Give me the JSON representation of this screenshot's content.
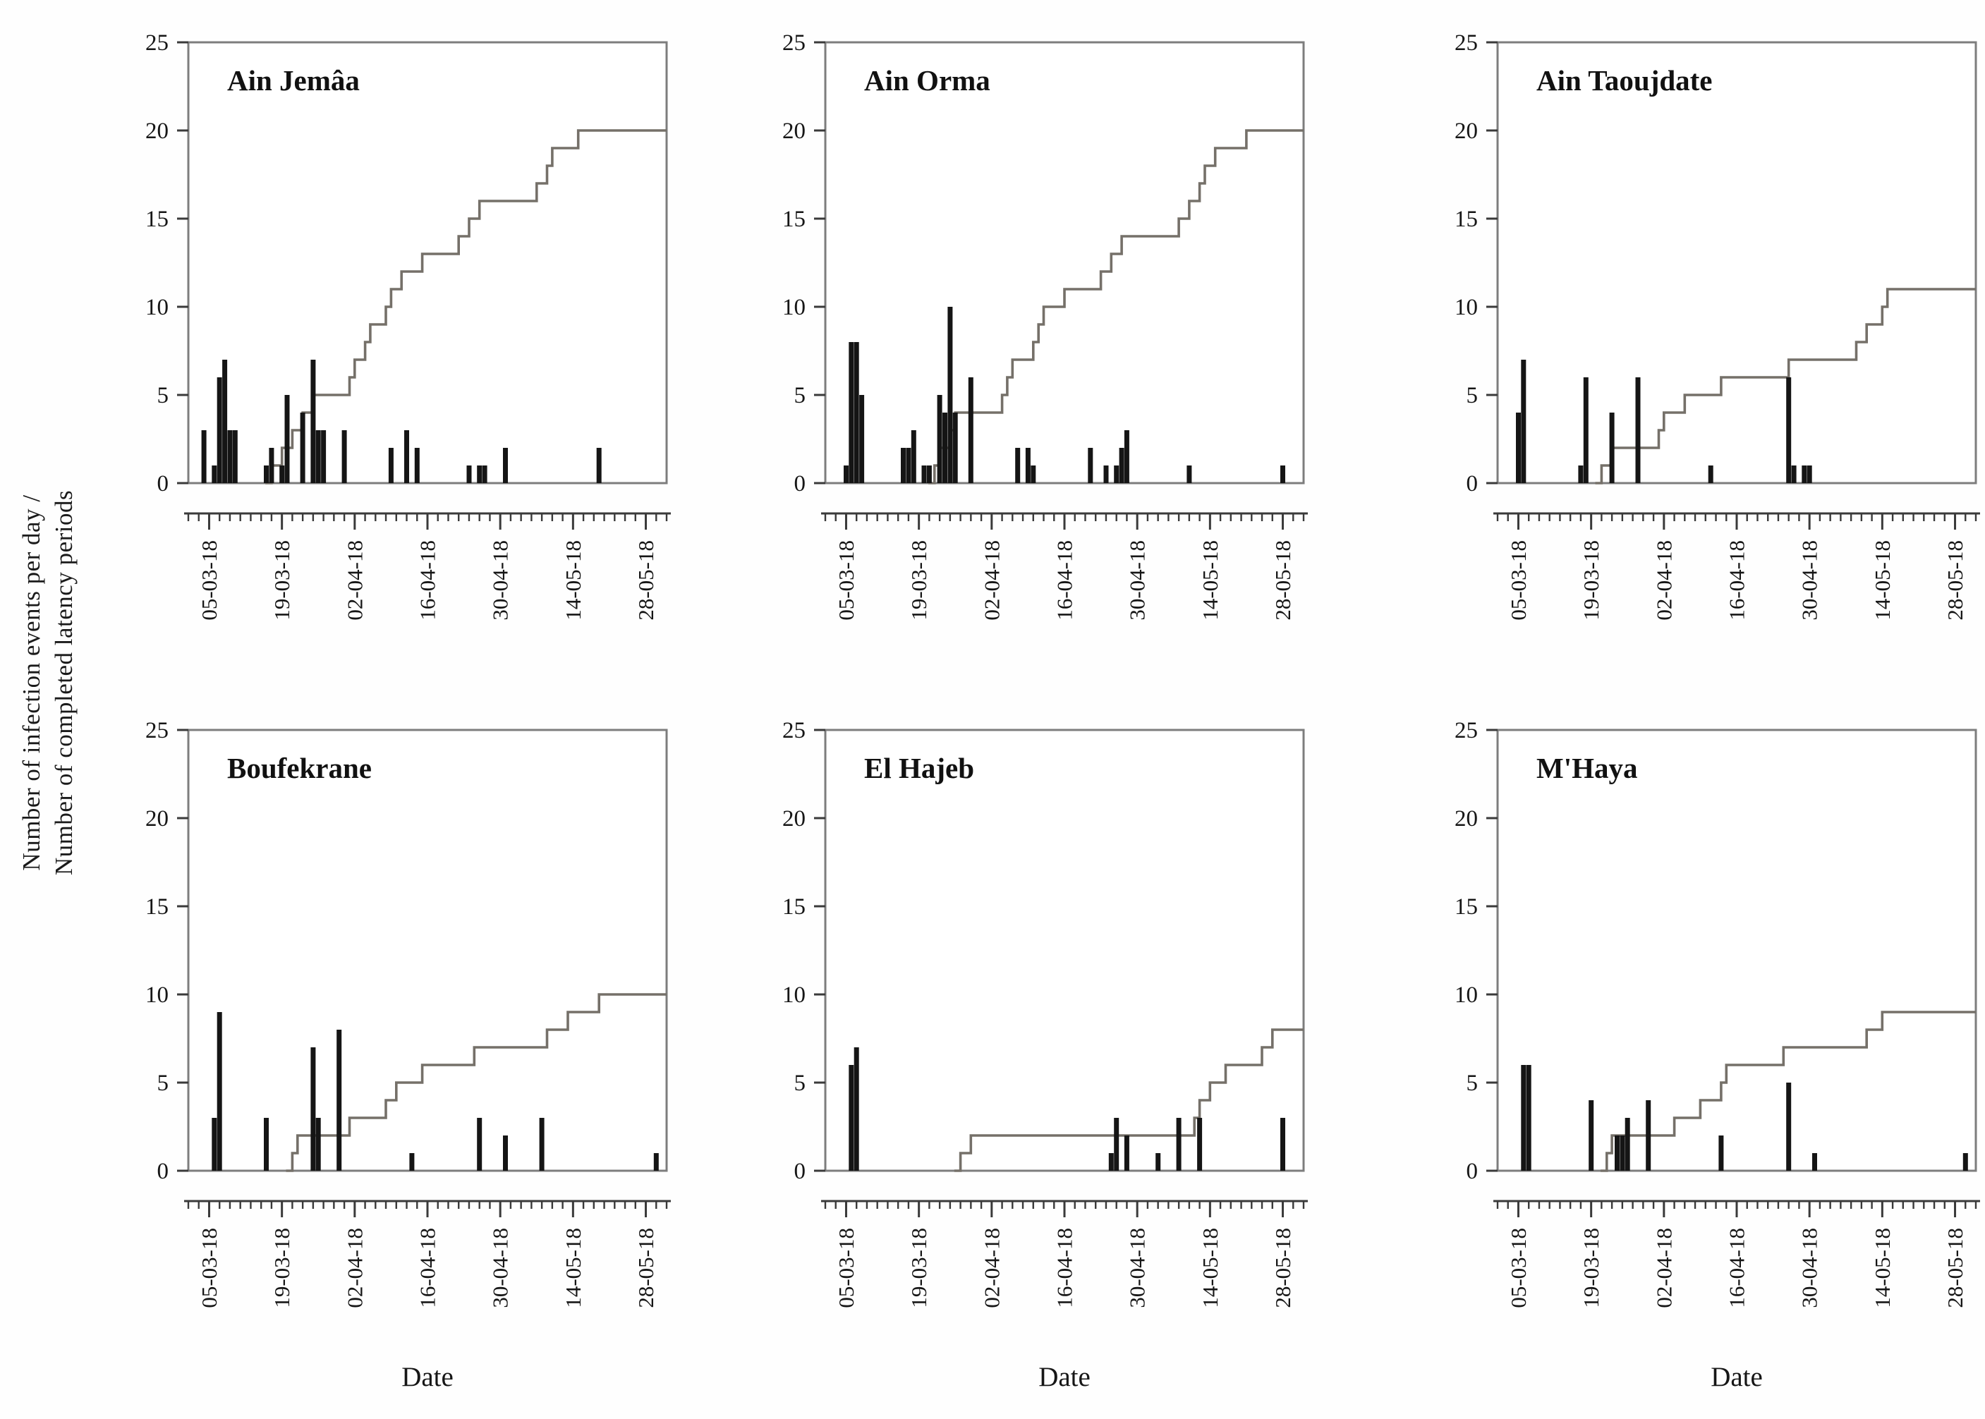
{
  "figure": {
    "y_axis_label_line1": "Number of infection events per day /",
    "y_axis_label_line2": "Number of completed latency periods",
    "x_axis_title": "Date",
    "y_tick_values": [
      0,
      5,
      10,
      15,
      20,
      25
    ],
    "x_tick_labels": [
      "05-03-18",
      "19-03-18",
      "02-04-18",
      "16-04-18",
      "30-04-18",
      "14-05-18",
      "28-05-18"
    ],
    "colors": {
      "bar": "#151515",
      "step_line": "#757069",
      "plot_border": "#7d7d7d",
      "axis_line": "#3a3a3a",
      "tick_mark": "#3a3a3a",
      "label_text": "#161616"
    }
  },
  "chart_data": {
    "type": "bar",
    "note": "Six panels: daily infection events (black bars) and cumulative completed latency periods (grey step line). X axis in days since 01-03-18; labelled major ticks every 14 days.",
    "x_domain_days": [
      0,
      92
    ],
    "y_domain": [
      0,
      25
    ],
    "x_major_tick_days": [
      4,
      18,
      32,
      46,
      60,
      74,
      88
    ],
    "legend_position": "none",
    "grid": "off",
    "panels": [
      {
        "title": "Ain Jemâa",
        "row": 0,
        "col": 0,
        "bars": [
          [
            3,
            3
          ],
          [
            5,
            1
          ],
          [
            6,
            6
          ],
          [
            7,
            7
          ],
          [
            8,
            3
          ],
          [
            9,
            3
          ],
          [
            15,
            1
          ],
          [
            16,
            2
          ],
          [
            18,
            1
          ],
          [
            19,
            5
          ],
          [
            22,
            4
          ],
          [
            24,
            7
          ],
          [
            25,
            3
          ],
          [
            26,
            3
          ],
          [
            30,
            3
          ],
          [
            39,
            2
          ],
          [
            42,
            3
          ],
          [
            44,
            2
          ],
          [
            54,
            1
          ],
          [
            56,
            1
          ],
          [
            57,
            1
          ],
          [
            61,
            2
          ],
          [
            79,
            2
          ]
        ],
        "latency_steps": [
          [
            16,
            1
          ],
          [
            18,
            2
          ],
          [
            20,
            3
          ],
          [
            22,
            4
          ],
          [
            24,
            5
          ],
          [
            31,
            6
          ],
          [
            32,
            7
          ],
          [
            34,
            8
          ],
          [
            35,
            9
          ],
          [
            38,
            10
          ],
          [
            39,
            11
          ],
          [
            41,
            12
          ],
          [
            45,
            13
          ],
          [
            52,
            14
          ],
          [
            54,
            15
          ],
          [
            56,
            16
          ],
          [
            67,
            17
          ],
          [
            69,
            18
          ],
          [
            70,
            19
          ],
          [
            75,
            20
          ]
        ],
        "final_value": 20
      },
      {
        "title": "Ain Orma",
        "row": 0,
        "col": 1,
        "bars": [
          [
            4,
            1
          ],
          [
            5,
            8
          ],
          [
            6,
            8
          ],
          [
            7,
            5
          ],
          [
            15,
            2
          ],
          [
            16,
            2
          ],
          [
            17,
            3
          ],
          [
            19,
            1
          ],
          [
            20,
            1
          ],
          [
            22,
            5
          ],
          [
            23,
            4
          ],
          [
            24,
            10
          ],
          [
            25,
            4
          ],
          [
            28,
            6
          ],
          [
            37,
            2
          ],
          [
            39,
            2
          ],
          [
            40,
            1
          ],
          [
            51,
            2
          ],
          [
            54,
            1
          ],
          [
            56,
            1
          ],
          [
            57,
            2
          ],
          [
            58,
            3
          ],
          [
            70,
            1
          ],
          [
            88,
            1
          ]
        ],
        "latency_steps": [
          [
            21,
            1
          ],
          [
            22,
            2
          ],
          [
            24,
            3
          ],
          [
            25,
            4
          ],
          [
            34,
            5
          ],
          [
            35,
            6
          ],
          [
            36,
            7
          ],
          [
            40,
            8
          ],
          [
            41,
            9
          ],
          [
            42,
            10
          ],
          [
            46,
            11
          ],
          [
            53,
            12
          ],
          [
            55,
            13
          ],
          [
            57,
            14
          ],
          [
            68,
            15
          ],
          [
            70,
            16
          ],
          [
            72,
            17
          ],
          [
            73,
            18
          ],
          [
            75,
            19
          ],
          [
            81,
            20
          ]
        ],
        "final_value": 20
      },
      {
        "title": "Ain Taoujdate",
        "row": 0,
        "col": 2,
        "bars": [
          [
            4,
            4
          ],
          [
            5,
            7
          ],
          [
            16,
            1
          ],
          [
            17,
            6
          ],
          [
            22,
            4
          ],
          [
            27,
            6
          ],
          [
            41,
            1
          ],
          [
            56,
            6
          ],
          [
            57,
            1
          ],
          [
            59,
            1
          ],
          [
            60,
            1
          ]
        ],
        "latency_steps": [
          [
            20,
            1
          ],
          [
            22,
            2
          ],
          [
            31,
            3
          ],
          [
            32,
            4
          ],
          [
            36,
            5
          ],
          [
            43,
            6
          ],
          [
            56,
            7
          ],
          [
            69,
            8
          ],
          [
            71,
            9
          ],
          [
            74,
            10
          ],
          [
            75,
            11
          ]
        ],
        "final_value": 11
      },
      {
        "title": "Boufekrane",
        "row": 1,
        "col": 0,
        "bars": [
          [
            5,
            3
          ],
          [
            6,
            9
          ],
          [
            15,
            3
          ],
          [
            24,
            7
          ],
          [
            25,
            3
          ],
          [
            29,
            8
          ],
          [
            43,
            1
          ],
          [
            56,
            3
          ],
          [
            61,
            2
          ],
          [
            68,
            3
          ],
          [
            90,
            1
          ]
        ],
        "latency_steps": [
          [
            20,
            1
          ],
          [
            21,
            2
          ],
          [
            31,
            3
          ],
          [
            38,
            4
          ],
          [
            40,
            5
          ],
          [
            45,
            6
          ],
          [
            55,
            7
          ],
          [
            69,
            8
          ],
          [
            73,
            9
          ],
          [
            79,
            10
          ]
        ],
        "final_value": 10
      },
      {
        "title": "El Hajeb",
        "row": 1,
        "col": 1,
        "bars": [
          [
            5,
            6
          ],
          [
            6,
            7
          ],
          [
            55,
            1
          ],
          [
            56,
            3
          ],
          [
            58,
            2
          ],
          [
            64,
            1
          ],
          [
            68,
            3
          ],
          [
            72,
            3
          ],
          [
            88,
            3
          ]
        ],
        "latency_steps": [
          [
            26,
            1
          ],
          [
            28,
            2
          ],
          [
            71,
            3
          ],
          [
            72,
            4
          ],
          [
            74,
            5
          ],
          [
            77,
            6
          ],
          [
            84,
            7
          ],
          [
            86,
            8
          ]
        ],
        "final_value": 8
      },
      {
        "title": "M'Haya",
        "row": 1,
        "col": 2,
        "bars": [
          [
            5,
            6
          ],
          [
            6,
            6
          ],
          [
            18,
            4
          ],
          [
            23,
            2
          ],
          [
            24,
            2
          ],
          [
            25,
            3
          ],
          [
            29,
            4
          ],
          [
            43,
            2
          ],
          [
            56,
            5
          ],
          [
            61,
            1
          ],
          [
            90,
            1
          ]
        ],
        "latency_steps": [
          [
            21,
            1
          ],
          [
            22,
            2
          ],
          [
            34,
            3
          ],
          [
            39,
            4
          ],
          [
            43,
            5
          ],
          [
            44,
            6
          ],
          [
            55,
            7
          ],
          [
            71,
            8
          ],
          [
            74,
            9
          ]
        ],
        "final_value": 9
      }
    ]
  }
}
